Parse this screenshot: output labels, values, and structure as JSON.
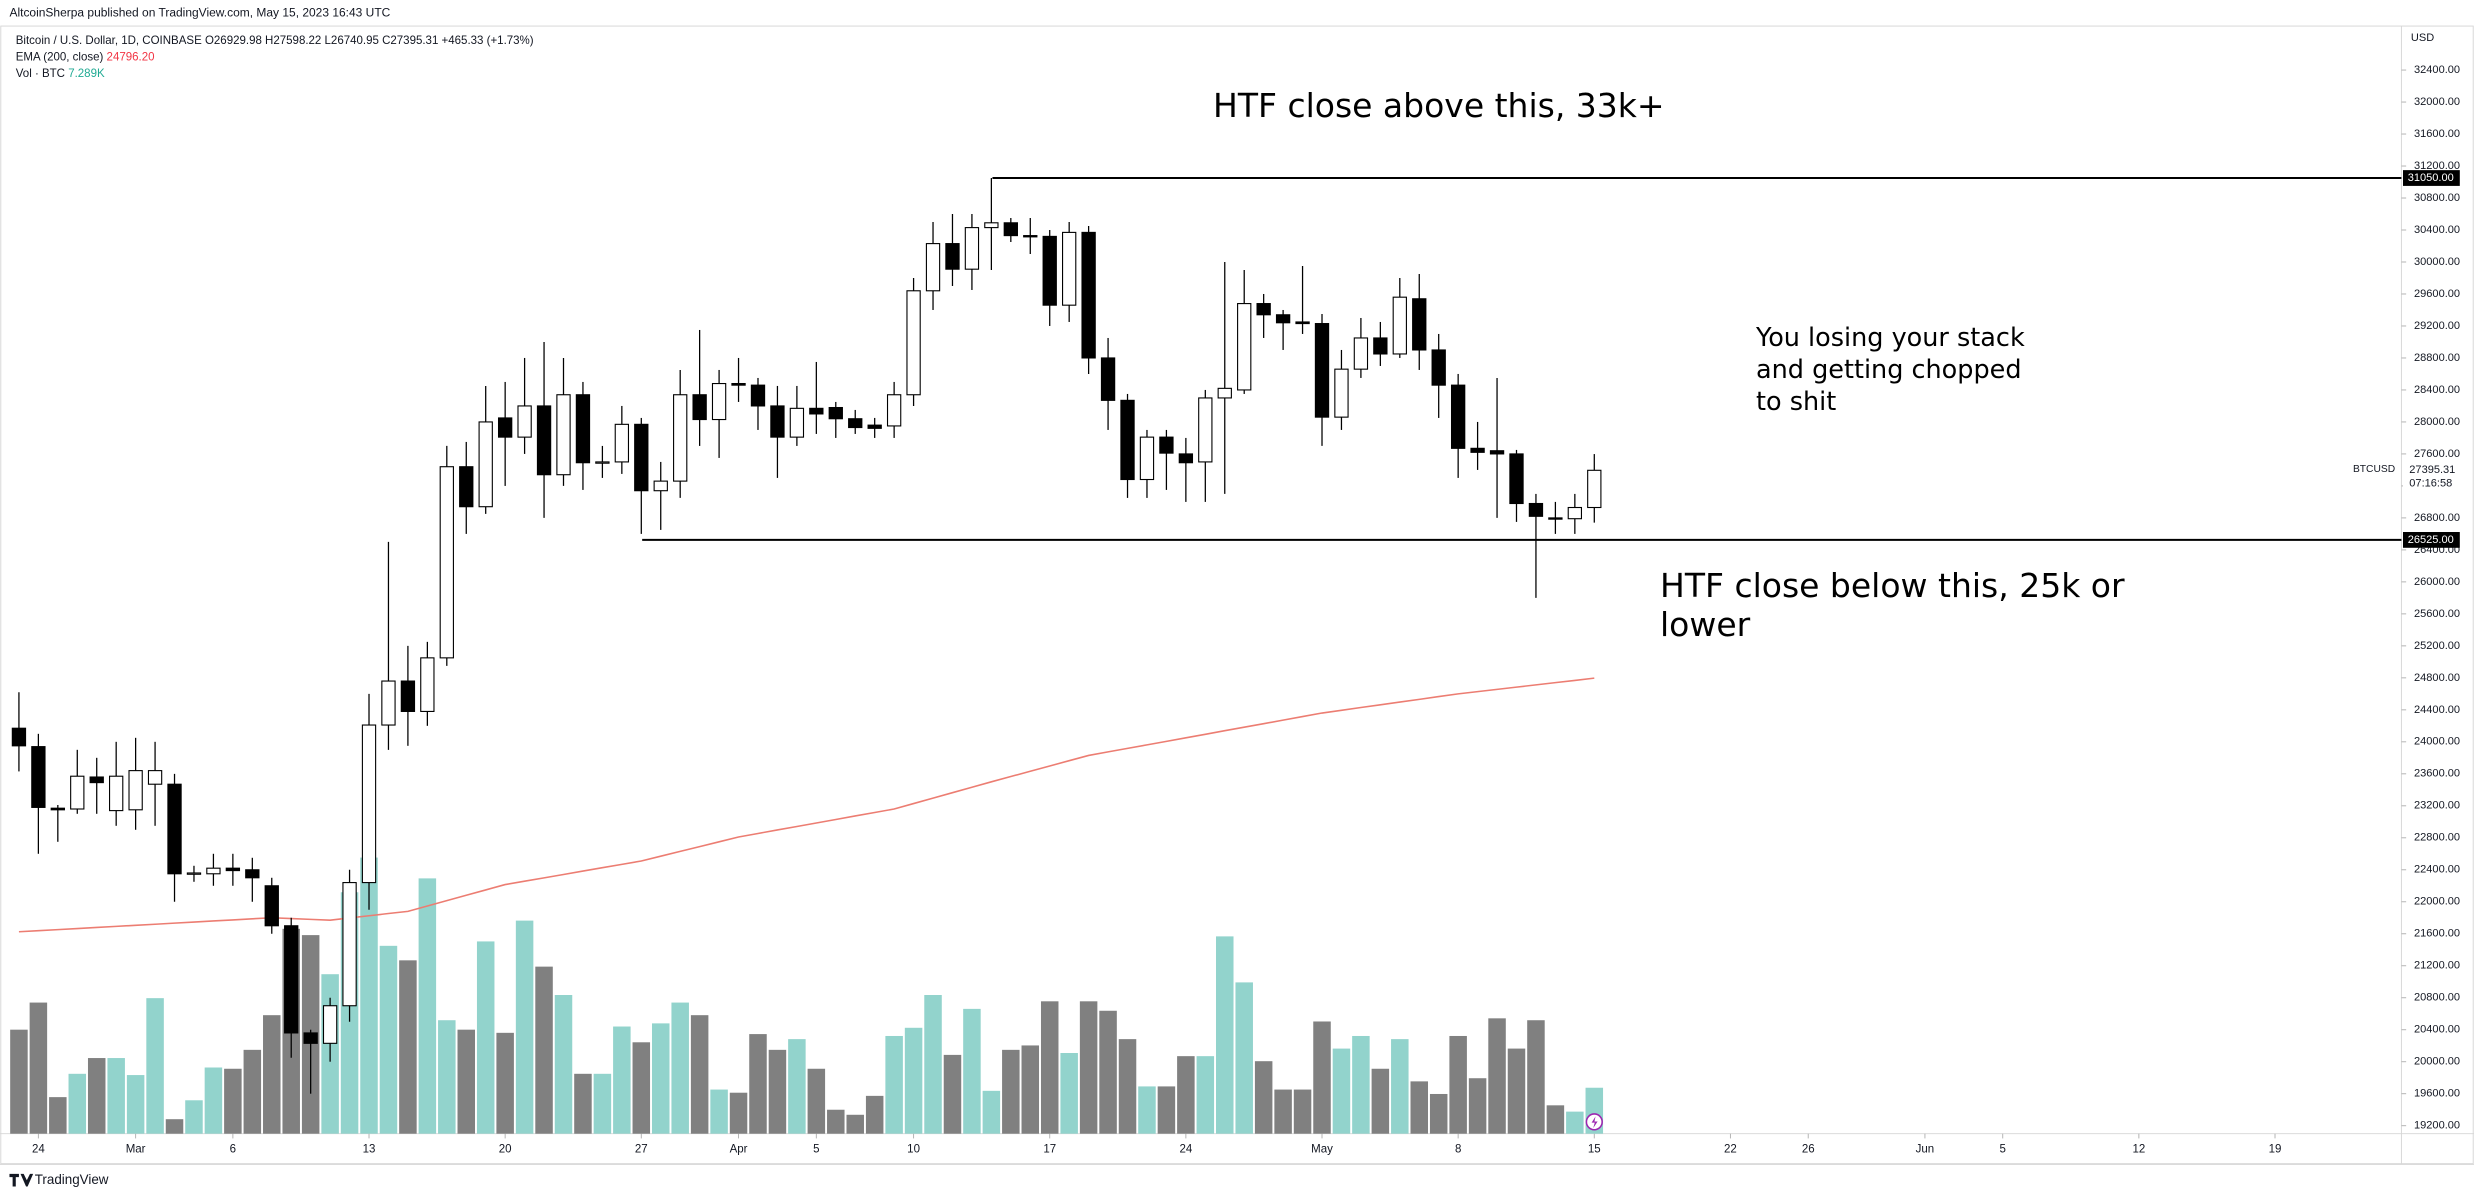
{
  "header": {
    "publisher": "AltcoinSherpa published on TradingView.com, May 15, 2023 16:43 UTC",
    "footer": "TradingView"
  },
  "chart_data": {
    "type": "candlestick",
    "symbol": "Bitcoin / U.S. Dollar, 1D, COINBASE",
    "ohlc_legend": "O26929.98 H27598.22 L26740.95 C27395.31 +465.33 (+1.73%)",
    "ema_name": "EMA (200, close)",
    "ema_legend": "24796.20",
    "volume_name": "Vol · BTC",
    "volume_legend": "7.289K",
    "currency": "USD",
    "price_label": {
      "symbol": "BTCUSD",
      "price": "27395.31",
      "countdown": "07:16:58"
    },
    "annotations": [
      "HTF close above this, 33k+",
      "You losing your stack\nand getting chopped\nto shit",
      "HTF close below this, 25k or\nlower"
    ],
    "levels": [
      {
        "value": 31050,
        "label": "31050.00"
      },
      {
        "value": 26525,
        "label": "26525.00"
      }
    ],
    "categories": [
      null,
      "24",
      null,
      null,
      null,
      null,
      "Mar",
      null,
      null,
      null,
      null,
      "6",
      null,
      null,
      null,
      null,
      null,
      null,
      "13",
      null,
      null,
      null,
      null,
      null,
      null,
      "20",
      null,
      null,
      null,
      null,
      null,
      null,
      "27",
      null,
      null,
      null,
      null,
      "Apr",
      null,
      null,
      null,
      "5",
      null,
      null,
      null,
      null,
      "10",
      null,
      null,
      null,
      null,
      null,
      null,
      "17",
      null,
      null,
      null,
      null,
      null,
      null,
      "24",
      null,
      null,
      null,
      null,
      null,
      null,
      "May",
      null,
      null,
      null,
      null,
      null,
      null,
      "8",
      null,
      null,
      null,
      null,
      null,
      null,
      "15",
      null,
      null,
      null,
      null,
      null,
      null,
      "22",
      null,
      null,
      null,
      "26",
      null,
      null,
      null,
      null,
      null,
      "Jun",
      null,
      null,
      null,
      "5",
      null,
      null,
      null,
      null,
      null,
      null,
      "12",
      null,
      null,
      null,
      null,
      null,
      null,
      "19",
      null,
      null,
      null,
      null,
      null,
      null
    ],
    "open": [
      24170,
      23940,
      23170,
      23160,
      23560,
      23140,
      23150,
      23470,
      23470,
      22350,
      22350,
      22420,
      22400,
      22200,
      21700,
      20360,
      20230,
      20700,
      22240,
      24210,
      24760,
      24380,
      25050,
      27440,
      26940,
      28050,
      27810,
      28200,
      27340,
      28340,
      27490,
      27500,
      27970,
      27140,
      27260,
      28340,
      28030,
      28480,
      28460,
      28200,
      27810,
      28170,
      28180,
      28040,
      27960,
      27950,
      28340,
      29640,
      30230,
      29910,
      30430,
      30490,
      30330,
      30320,
      29460,
      30370,
      28800,
      28270,
      27280,
      27810,
      27600,
      27500,
      28300,
      28400,
      29480,
      29340,
      29250,
      29230,
      28060,
      28660,
      29050,
      28850,
      29540,
      28900,
      28460,
      27670,
      27640,
      27600,
      26980,
      26800,
      26790,
      26929.98,
      null,
      null,
      null,
      null,
      null,
      null,
      null,
      null,
      null,
      null,
      null,
      null,
      null,
      null,
      null,
      null,
      null,
      null,
      null,
      null,
      null,
      null,
      null,
      null,
      null,
      null,
      null,
      null,
      null,
      null,
      null,
      null,
      null,
      null,
      null,
      null,
      null,
      null,
      null,
      null,
      null
    ],
    "high": [
      24620,
      24100,
      23210,
      23900,
      23800,
      24000,
      24050,
      24000,
      23600,
      22450,
      22600,
      22600,
      22550,
      22300,
      21800,
      20400,
      20800,
      22400,
      24600,
      26500,
      25200,
      25250,
      27700,
      27750,
      28450,
      28500,
      28800,
      29000,
      28800,
      28500,
      27700,
      28200,
      28050,
      27500,
      28650,
      29150,
      28650,
      28800,
      28550,
      28450,
      28450,
      28750,
      28250,
      28150,
      28050,
      28500,
      29800,
      30500,
      30600,
      30600,
      31050,
      30550,
      30550,
      30400,
      30500,
      30450,
      29050,
      28350,
      27900,
      27900,
      27800,
      28400,
      30000,
      29900,
      29600,
      29400,
      29950,
      29350,
      28900,
      29300,
      29250,
      29800,
      29850,
      29100,
      28600,
      28000,
      28550,
      27650,
      27100,
      27000,
      27100,
      27598.22,
      null,
      null,
      null,
      null,
      null,
      null,
      null,
      null,
      null,
      null,
      null,
      null,
      null,
      null,
      null,
      null,
      null,
      null,
      null,
      null,
      null,
      null,
      null,
      null,
      null,
      null,
      null,
      null,
      null,
      null,
      null,
      null,
      null,
      null,
      null,
      null,
      null,
      null,
      null,
      null,
      null
    ],
    "low": [
      23630,
      22600,
      22750,
      23100,
      23100,
      22950,
      22900,
      22950,
      22000,
      22250,
      22200,
      22200,
      22000,
      21600,
      20050,
      19600,
      20000,
      20500,
      21900,
      23900,
      23950,
      24200,
      24950,
      26600,
      26850,
      27200,
      27600,
      26800,
      27200,
      27150,
      27300,
      27350,
      26600,
      26650,
      27050,
      27700,
      27550,
      28250,
      27900,
      27300,
      27700,
      27850,
      27800,
      27850,
      27800,
      27800,
      28200,
      29400,
      29700,
      29650,
      29900,
      30250,
      30100,
      29200,
      29250,
      28600,
      27900,
      27050,
      27050,
      27150,
      27000,
      27000,
      27100,
      28350,
      29050,
      28900,
      29100,
      27700,
      27900,
      28550,
      28700,
      28800,
      28650,
      28050,
      27300,
      27400,
      26800,
      26750,
      25800,
      26600,
      26600,
      26740.95,
      null,
      null,
      null,
      null,
      null,
      null,
      null,
      null,
      null,
      null,
      null,
      null,
      null,
      null,
      null,
      null,
      null,
      null,
      null,
      null,
      null,
      null,
      null,
      null,
      null,
      null,
      null,
      null,
      null,
      null,
      null,
      null,
      null,
      null,
      null,
      null,
      null,
      null,
      null,
      null,
      null
    ],
    "close": [
      23950,
      23180,
      23150,
      23570,
      23490,
      23570,
      23640,
      23640,
      22350,
      22360,
      22420,
      22390,
      22300,
      21700,
      20360,
      20230,
      20700,
      22240,
      24210,
      24760,
      24380,
      25050,
      27440,
      26940,
      28000,
      27810,
      28200,
      27340,
      28340,
      27490,
      27500,
      27970,
      27140,
      27260,
      28340,
      28030,
      28480,
      28460,
      28200,
      27810,
      28170,
      28100,
      28040,
      27930,
      27920,
      28340,
      29640,
      30230,
      29910,
      30430,
      30490,
      30330,
      30320,
      29460,
      30370,
      28800,
      28270,
      27280,
      27810,
      27610,
      27490,
      28300,
      28420,
      29480,
      29340,
      29240,
      29230,
      28060,
      28660,
      29050,
      28850,
      29560,
      28900,
      28460,
      27670,
      27620,
      27600,
      26980,
      26820,
      26790,
      26930,
      27395.31,
      null,
      null,
      null,
      null,
      null,
      null,
      null,
      null,
      null,
      null,
      null,
      null,
      null,
      null,
      null,
      null,
      null,
      null,
      null,
      null,
      null,
      null,
      null,
      null,
      null,
      null,
      null,
      null,
      null,
      null,
      null,
      null,
      null,
      null,
      null,
      null,
      null,
      null,
      null,
      null,
      null
    ],
    "volume": [
      16.5,
      20.8,
      5.8,
      9.5,
      12,
      12,
      9.3,
      21.5,
      2.3,
      5.3,
      10.5,
      10.3,
      13.3,
      18.8,
      32.5,
      31.5,
      25.3,
      38.3,
      43.8,
      29.8,
      27.5,
      40.5,
      18,
      16.5,
      30.5,
      16,
      33.8,
      26.5,
      22,
      9.5,
      9.5,
      17,
      14.5,
      17.5,
      20.8,
      18.8,
      7,
      6.5,
      15.8,
      13.3,
      15,
      10.3,
      3.8,
      3,
      6,
      15.5,
      16.8,
      22,
      12.5,
      19.8,
      6.8,
      13.3,
      14,
      21,
      12.8,
      21,
      19.5,
      15,
      7.5,
      7.5,
      12.3,
      12.3,
      31.3,
      24,
      11.5,
      7,
      7,
      17.8,
      13.5,
      15.5,
      10.3,
      15,
      8.3,
      6.3,
      15.5,
      8.8,
      18.3,
      13.5,
      18,
      4.5,
      3.5,
      7.289,
      null,
      null,
      null,
      null,
      null,
      null,
      null,
      null,
      null,
      null,
      null,
      null,
      null,
      null,
      null,
      null,
      null,
      null,
      null,
      null,
      null,
      null,
      null,
      null,
      null,
      null,
      null,
      null,
      null,
      null,
      null,
      null,
      null,
      null,
      null,
      null,
      null,
      null,
      null,
      null,
      null
    ],
    "ema": [
      21625,
      21638,
      21652,
      21665,
      21679,
      21692,
      21706,
      21719,
      21733,
      21746,
      21760,
      21773,
      21787,
      21800,
      21790,
      21780,
      21770,
      21798,
      21825,
      21853,
      21880,
      21947,
      22014,
      22081,
      22148,
      22215,
      22257,
      22299,
      22341,
      22384,
      22426,
      22468,
      22510,
      22570,
      22630,
      22690,
      22750,
      22810,
      22854,
      22898,
      22941,
      22985,
      23029,
      23073,
      23116,
      23160,
      23228,
      23296,
      23364,
      23432,
      23500,
      23566,
      23632,
      23698,
      23764,
      23830,
      23874,
      23918,
      23962,
      24006,
      24050,
      24094,
      24139,
      24183,
      24227,
      24271,
      24316,
      24360,
      24394,
      24429,
      24463,
      24497,
      24531,
      24566,
      24600,
      24628,
      24656,
      24684,
      24712,
      24740,
      24768,
      24796.2,
      null,
      null,
      null,
      null,
      null,
      null,
      null,
      null,
      null,
      null,
      null,
      null,
      null,
      null,
      null,
      null,
      null,
      null,
      null,
      null,
      null,
      null,
      null,
      null,
      null,
      null,
      null,
      null,
      null,
      null,
      null,
      null,
      null,
      null,
      null,
      null,
      null,
      null,
      null,
      null,
      null
    ],
    "ylim": [
      19100,
      32950
    ],
    "yticks": [
      {
        "value": 19200,
        "label": "19200.00"
      },
      {
        "value": 19600,
        "label": "19600.00"
      },
      {
        "value": 20000,
        "label": "20000.00"
      },
      {
        "value": 20400,
        "label": "20400.00"
      },
      {
        "value": 20800,
        "label": "20800.00"
      },
      {
        "value": 21200,
        "label": "21200.00"
      },
      {
        "value": 21600,
        "label": "21600.00"
      },
      {
        "value": 22000,
        "label": "22000.00"
      },
      {
        "value": 22400,
        "label": "22400.00"
      },
      {
        "value": 22800,
        "label": "22800.00"
      },
      {
        "value": 23200,
        "label": "23200.00"
      },
      {
        "value": 23600,
        "label": "23600.00"
      },
      {
        "value": 24000,
        "label": "24000.00"
      },
      {
        "value": 24400,
        "label": "24400.00"
      },
      {
        "value": 24800,
        "label": "24800.00"
      },
      {
        "value": 25200,
        "label": "25200.00"
      },
      {
        "value": 25600,
        "label": "25600.00"
      },
      {
        "value": 26000,
        "label": "26000.00"
      },
      {
        "value": 26400,
        "label": "26400.00"
      },
      {
        "value": 26800,
        "label": "26800.00"
      },
      {
        "value": 27200,
        "label": "27200.00"
      },
      {
        "value": 27600,
        "label": "27600.00"
      },
      {
        "value": 28000,
        "label": "28000.00"
      },
      {
        "value": 28400,
        "label": "28400.00"
      },
      {
        "value": 28800,
        "label": "28800.00"
      },
      {
        "value": 29200,
        "label": "29200.00"
      },
      {
        "value": 29600,
        "label": "29600.00"
      },
      {
        "value": 30000,
        "label": "30000.00"
      },
      {
        "value": 30400,
        "label": "30400.00"
      },
      {
        "value": 30800,
        "label": "30800.00"
      },
      {
        "value": 31200,
        "label": "31200.00"
      },
      {
        "value": 31600,
        "label": "31600.00"
      },
      {
        "value": 32000,
        "label": "32000.00"
      },
      {
        "value": 32400,
        "label": "32400.00"
      }
    ],
    "grid": false,
    "colors": {
      "up_body": "#ffffff",
      "down_body": "#000000",
      "wick": "#000000",
      "volume_up": "#92d3cc",
      "volume_down": "#808080",
      "ema": "#ec7d72",
      "levels": "#000000",
      "ema_legend": "#f23645",
      "volume_legend": "#22ab94"
    }
  }
}
